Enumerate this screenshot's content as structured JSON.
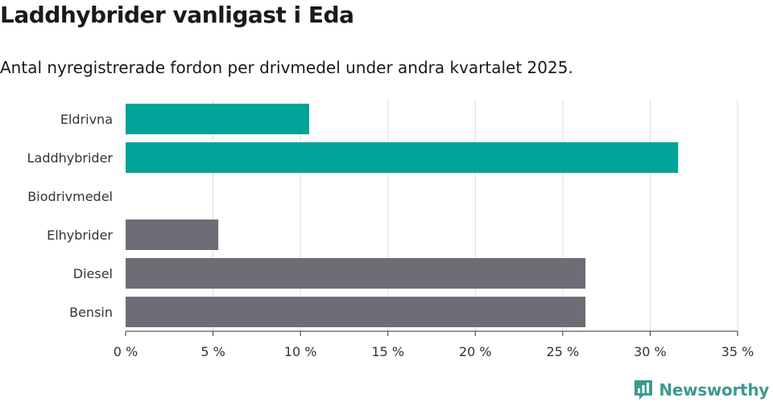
{
  "header": {
    "title": "Laddhybrider vanligast i Eda",
    "subtitle": "Antal nyregistrerade fordon per drivmedel under andra kvartalet 2025."
  },
  "brand": {
    "name": "Newsworthy",
    "icon": "bar-chart-speech-bubble-icon",
    "color": "#3a9b8f"
  },
  "chart_data": {
    "type": "bar",
    "orientation": "horizontal",
    "categories": [
      "Eldrivna",
      "Laddhybrider",
      "Biodrivmedel",
      "Elhybrider",
      "Diesel",
      "Bensin"
    ],
    "values": [
      10.5,
      31.6,
      0,
      5.3,
      26.3,
      26.3
    ],
    "colors": [
      "#00a398",
      "#00a398",
      "#6e6d75",
      "#6e6d75",
      "#6e6d75",
      "#6e6d75"
    ],
    "xlim": [
      0,
      35
    ],
    "xticks": [
      0,
      5,
      10,
      15,
      20,
      25,
      30,
      35
    ],
    "xtick_labels": [
      "0 %",
      "5 %",
      "10 %",
      "15 %",
      "20 %",
      "25 %",
      "30 %",
      "35 %"
    ],
    "grid": true,
    "xlabel": "",
    "ylabel": ""
  }
}
